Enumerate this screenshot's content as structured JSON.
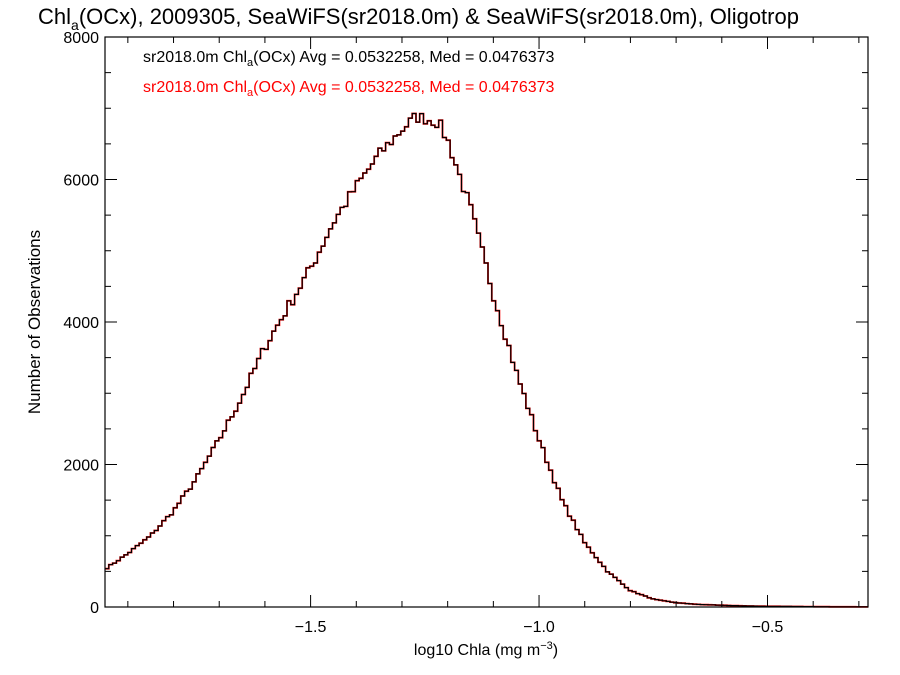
{
  "chart_data": {
    "type": "histogram-step",
    "title": {
      "pre": "Chl",
      "sub": "a",
      "post": "(OCx), 2009305, SeaWiFS(sr2018.0m) & SeaWiFS(sr2018.0m), Oligotrop"
    },
    "xlabel": {
      "pre": "log10 Chla (mg m",
      "sup": "−3",
      "post": ")"
    },
    "ylabel": "Number of Observations",
    "xlim": [
      -1.95,
      -0.28
    ],
    "ylim": [
      0,
      8000
    ],
    "xticks": [
      -1.5,
      -1.0,
      -0.5
    ],
    "xtick_labels": [
      "−1.5",
      "−1.0",
      "−0.5"
    ],
    "yticks": [
      0,
      2000,
      4000,
      6000,
      8000
    ],
    "ytick_labels": [
      "0",
      "2000",
      "4000",
      "6000",
      "8000"
    ],
    "legend": [
      {
        "pre": "sr2018.0m Chl",
        "sub": "a",
        "post": "(OCx) Avg = 0.0532258, Med = 0.0476373",
        "color": "#000000"
      },
      {
        "pre": "sr2018.0m Chl",
        "sub": "a",
        "post": "(OCx) Avg = 0.0532258, Med = 0.0476373",
        "color": "#ff0000"
      }
    ],
    "legend_position": "top-left",
    "series": [
      {
        "color": "#ff0000",
        "x": [
          -1.95,
          -1.9,
          -1.85,
          -1.8,
          -1.75,
          -1.7,
          -1.65,
          -1.6,
          -1.55,
          -1.5,
          -1.45,
          -1.4,
          -1.35,
          -1.3,
          -1.27,
          -1.25,
          -1.22,
          -1.2,
          -1.15,
          -1.1,
          -1.05,
          -1.0,
          -0.95,
          -0.9,
          -0.85,
          -0.8,
          -0.75,
          -0.7,
          -0.65,
          -0.6,
          -0.55,
          -0.5,
          -0.45,
          -0.4,
          -0.35,
          -0.3,
          -0.28
        ],
        "y": [
          530,
          750,
          1000,
          1350,
          1800,
          2350,
          2950,
          3650,
          4200,
          4750,
          5400,
          5900,
          6350,
          6700,
          6880,
          6860,
          6800,
          6550,
          5600,
          4400,
          3300,
          2350,
          1500,
          900,
          500,
          230,
          110,
          60,
          35,
          25,
          15,
          10,
          8,
          5,
          3,
          2,
          2
        ]
      },
      {
        "color": "#000000",
        "x": [
          -1.95,
          -1.9,
          -1.85,
          -1.8,
          -1.75,
          -1.7,
          -1.65,
          -1.6,
          -1.55,
          -1.5,
          -1.45,
          -1.4,
          -1.35,
          -1.3,
          -1.27,
          -1.25,
          -1.22,
          -1.2,
          -1.15,
          -1.1,
          -1.05,
          -1.0,
          -0.95,
          -0.9,
          -0.85,
          -0.8,
          -0.75,
          -0.7,
          -0.65,
          -0.6,
          -0.55,
          -0.5,
          -0.45,
          -0.4,
          -0.35,
          -0.3,
          -0.28
        ],
        "y": [
          530,
          750,
          1000,
          1350,
          1800,
          2350,
          2950,
          3650,
          4200,
          4750,
          5400,
          5900,
          6350,
          6700,
          6880,
          6860,
          6800,
          6550,
          5600,
          4400,
          3300,
          2350,
          1500,
          900,
          500,
          230,
          110,
          60,
          35,
          25,
          15,
          10,
          8,
          5,
          3,
          2,
          2
        ]
      }
    ]
  }
}
